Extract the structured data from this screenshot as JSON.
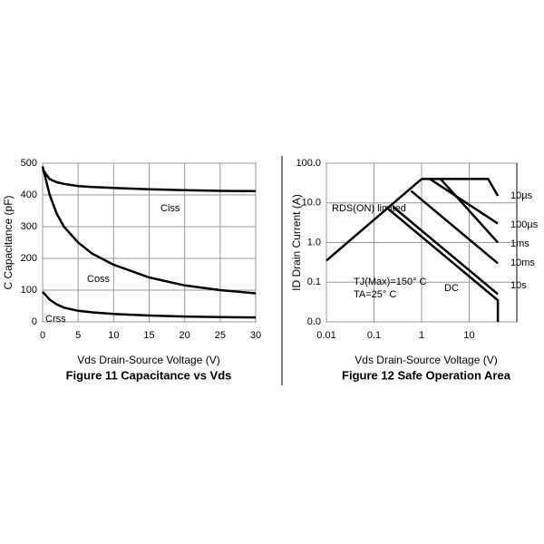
{
  "chart_data": [
    {
      "type": "line",
      "title": "Figure 11 Capacitance vs Vds",
      "xlabel": "Vds Drain-Source Voltage (V)",
      "ylabel": "C Capacitance (pF)",
      "x": [
        0,
        1,
        2,
        3,
        5,
        7,
        10,
        15,
        20,
        25,
        30
      ],
      "xlim": [
        0,
        30
      ],
      "xticks": [
        0,
        5,
        10,
        15,
        20,
        25,
        30
      ],
      "ylim": [
        0,
        500
      ],
      "yticks": [
        0,
        100,
        200,
        300,
        400,
        500
      ],
      "grid": true,
      "series": [
        {
          "name": "Ciss",
          "color": "#000000",
          "values": [
            480,
            450,
            440,
            435,
            428,
            425,
            422,
            418,
            415,
            413,
            412
          ]
        },
        {
          "name": "Coss",
          "color": "#000000",
          "values": [
            490,
            400,
            340,
            300,
            250,
            215,
            180,
            140,
            115,
            100,
            90
          ]
        },
        {
          "name": "Crss",
          "color": "#000000",
          "values": [
            95,
            70,
            55,
            45,
            35,
            30,
            25,
            20,
            17,
            15,
            14
          ]
        }
      ]
    },
    {
      "type": "line",
      "title": "Figure 12 Safe Operation Area",
      "xlabel": "Vds Drain-Source Voltage (V)",
      "ylabel": "ID Drain Current (A)",
      "log_x": true,
      "log_y": true,
      "xlim": [
        0.01,
        100
      ],
      "xticks": [
        0.01,
        0.1,
        1,
        10
      ],
      "ylim": [
        0.01,
        100
      ],
      "yticks": [
        {
          "value": 100,
          "label": "100.0"
        },
        {
          "value": 10,
          "label": "10.0"
        },
        {
          "value": 1,
          "label": "1.0"
        },
        {
          "value": 0.1,
          "label": "0.1"
        },
        {
          "value": 0.01,
          "label": "0.0"
        }
      ],
      "grid": true,
      "annotations": [
        "TJ(Max)=150° C",
        "TA=25° C"
      ],
      "series": [
        {
          "name": "RDS(ON) limited",
          "color": "#000000",
          "x": [
            0.01,
            1
          ],
          "values": [
            0.35,
            40
          ]
        },
        {
          "name": "10µs",
          "color": "#000000",
          "x": [
            1,
            25,
            40
          ],
          "values": [
            40,
            40,
            15
          ]
        },
        {
          "name": "100µs",
          "color": "#000000",
          "x": [
            1.5,
            40
          ],
          "values": [
            40,
            3
          ]
        },
        {
          "name": "1ms",
          "color": "#000000",
          "x": [
            2.5,
            40
          ],
          "values": [
            40,
            1
          ]
        },
        {
          "name": "10ms",
          "color": "#000000",
          "x": [
            0.6,
            40
          ],
          "values": [
            20,
            0.3
          ]
        },
        {
          "name": "10s",
          "color": "#000000",
          "x": [
            0.25,
            40
          ],
          "values": [
            8,
            0.05
          ]
        },
        {
          "name": "DC",
          "color": "#000000",
          "x": [
            0.2,
            40,
            40
          ],
          "values": [
            7,
            0.035,
            0.01
          ]
        }
      ]
    }
  ]
}
